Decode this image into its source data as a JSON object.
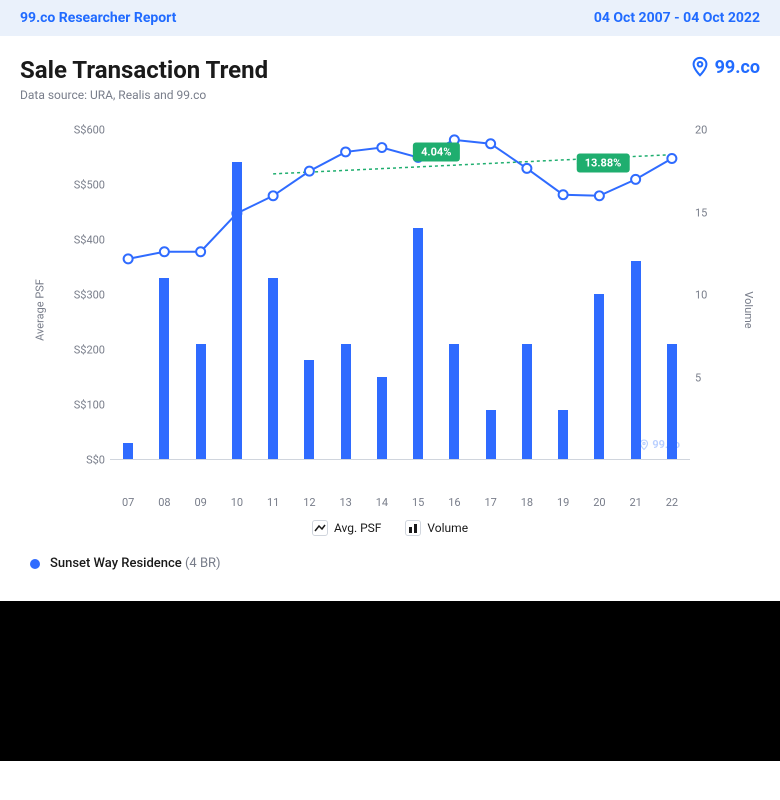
{
  "header": {
    "report_label": "99.co Researcher Report",
    "date_range": "04 Oct 2007 - 04 Oct 2022"
  },
  "title": "Sale Transaction Trend",
  "subtitle": "Data source: URA, Realis and 99.co",
  "brand": "99.co",
  "chart": {
    "type": "bar+line",
    "x_labels": [
      "07",
      "08",
      "09",
      "10",
      "11",
      "12",
      "13",
      "14",
      "15",
      "16",
      "17",
      "18",
      "19",
      "20",
      "21",
      "22"
    ],
    "left_axis": {
      "label": "Average PSF",
      "min": 0,
      "max": 600,
      "step": 100,
      "tick_prefix": "S$",
      "ticks": [
        0,
        100,
        200,
        300,
        400,
        500,
        600
      ]
    },
    "right_axis": {
      "label": "Volume",
      "min": 0,
      "max": 20,
      "step": 5,
      "ticks": [
        5,
        10,
        15,
        20
      ]
    },
    "volume_bars": [
      1,
      11,
      7,
      18,
      11,
      6,
      7,
      5,
      14,
      7,
      3,
      7,
      3,
      10,
      12,
      7
    ],
    "psf_line": [
      365,
      378,
      378,
      448,
      480,
      525,
      560,
      568,
      550,
      582,
      575,
      530,
      482,
      480,
      510,
      548
    ],
    "bar_color": "#2f6bff",
    "line_color": "#2f6bff",
    "marker_fill": "#ffffff",
    "trend_color": "#1fae6f",
    "grid_color": "#d0d5dd",
    "text_color": "#787d8a",
    "badges": [
      {
        "text": "4.04%",
        "x_index": 8.5,
        "psf": 560
      },
      {
        "text": "13.88%",
        "x_index": 13.1,
        "psf": 540
      }
    ],
    "trend": {
      "start_idx": 4,
      "start_psf": 520,
      "end_idx": 15,
      "end_psf": 555
    },
    "watermark_text": "99.co"
  },
  "legend": {
    "avg_psf": "Avg. PSF",
    "volume": "Volume"
  },
  "series": {
    "name": "Sunset Way Residence",
    "detail": "(4 BR)",
    "color": "#2f6bff"
  }
}
